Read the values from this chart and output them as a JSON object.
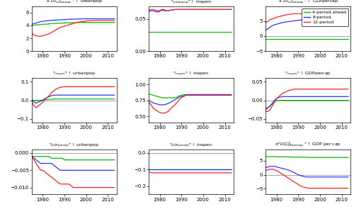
{
  "years": [
    1975,
    1976,
    1977,
    1978,
    1979,
    1980,
    1981,
    1982,
    1983,
    1984,
    1985,
    1986,
    1987,
    1988,
    1989,
    1990,
    1991,
    1992,
    1993,
    1994,
    1995,
    1996,
    1997,
    1998,
    1999,
    2000,
    2001,
    2002,
    2003,
    2004,
    2005,
    2006,
    2007,
    2008,
    2009,
    2010,
    2011,
    2012,
    2013
  ],
  "colors": {
    "green": "#00bb00",
    "blue": "#3333ff",
    "red": "#ff2222"
  },
  "legend_labels": [
    "4-period ahead",
    "8-period",
    "12-period"
  ],
  "xlim": [
    1975,
    2014
  ],
  "xticks": [
    1980,
    1990,
    2000,
    2010
  ],
  "panels": {
    "r0c0": {
      "title": "x 10$^{-3}_{urbanpop}$ \" !  urbanpop",
      "ylim": [
        0,
        7
      ],
      "yticks": [
        0,
        2,
        4,
        6
      ],
      "green": [
        4.0,
        4.05,
        4.1,
        4.1,
        4.15,
        4.18,
        4.2,
        4.22,
        4.25,
        4.28,
        4.3,
        4.32,
        4.35,
        4.37,
        4.38,
        4.39,
        4.4,
        4.42,
        4.43,
        4.44,
        4.45,
        4.46,
        4.47,
        4.47,
        4.47,
        4.47,
        4.47,
        4.47,
        4.47,
        4.47,
        4.47,
        4.47,
        4.47,
        4.47,
        4.47,
        4.47,
        4.47,
        4.47,
        4.47
      ],
      "blue": [
        4.2,
        4.3,
        4.4,
        4.5,
        4.6,
        4.65,
        4.7,
        4.73,
        4.76,
        4.79,
        4.82,
        4.84,
        4.86,
        4.88,
        4.9,
        4.92,
        4.94,
        4.96,
        4.97,
        4.98,
        5.0,
        5.01,
        5.02,
        5.03,
        5.04,
        5.04,
        5.04,
        5.04,
        5.04,
        5.04,
        5.04,
        5.04,
        5.04,
        5.04,
        5.04,
        5.04,
        5.04,
        5.04,
        5.04
      ],
      "red": [
        2.8,
        2.5,
        2.4,
        2.3,
        2.3,
        2.4,
        2.5,
        2.6,
        2.7,
        2.9,
        3.1,
        3.3,
        3.5,
        3.7,
        3.8,
        3.9,
        4.0,
        4.1,
        4.2,
        4.3,
        4.4,
        4.5,
        4.55,
        4.6,
        4.65,
        4.7,
        4.73,
        4.75,
        4.77,
        4.78,
        4.79,
        4.8,
        4.8,
        4.8,
        4.8,
        4.8,
        4.8,
        4.8,
        4.8
      ]
    },
    "r0c1": {
      "title": "\"$_{urbanpop}$\" !  inspen",
      "ylim": [
        0,
        0.07
      ],
      "yticks": [
        0,
        0.05
      ],
      "green": [
        0.03,
        0.03,
        0.03,
        0.03,
        0.03,
        0.03,
        0.03,
        0.03,
        0.03,
        0.03,
        0.03,
        0.03,
        0.03,
        0.03,
        0.03,
        0.03,
        0.03,
        0.03,
        0.03,
        0.03,
        0.03,
        0.03,
        0.03,
        0.03,
        0.03,
        0.03,
        0.03,
        0.03,
        0.03,
        0.03,
        0.03,
        0.03,
        0.03,
        0.03,
        0.03,
        0.03,
        0.03,
        0.03,
        0.03
      ],
      "blue": [
        0.062,
        0.063,
        0.063,
        0.062,
        0.061,
        0.062,
        0.064,
        0.063,
        0.063,
        0.063,
        0.064,
        0.064,
        0.065,
        0.065,
        0.065,
        0.065,
        0.065,
        0.065,
        0.065,
        0.065,
        0.065,
        0.065,
        0.065,
        0.065,
        0.065,
        0.065,
        0.065,
        0.065,
        0.065,
        0.065,
        0.065,
        0.065,
        0.065,
        0.065,
        0.065,
        0.065,
        0.065,
        0.065,
        0.065
      ],
      "red": [
        0.064,
        0.065,
        0.065,
        0.064,
        0.063,
        0.063,
        0.065,
        0.065,
        0.063,
        0.063,
        0.064,
        0.064,
        0.065,
        0.065,
        0.065,
        0.065,
        0.065,
        0.065,
        0.065,
        0.065,
        0.065,
        0.065,
        0.065,
        0.065,
        0.065,
        0.065,
        0.065,
        0.065,
        0.065,
        0.065,
        0.065,
        0.065,
        0.065,
        0.065,
        0.065,
        0.065,
        0.065,
        0.065,
        0.065
      ]
    },
    "r0c2": {
      "title": "x 10$^{-3}_{urbanpop}$ \" !  GDPpercap",
      "ylim": [
        -5,
        10
      ],
      "yticks": [
        -5,
        0,
        5
      ],
      "green": [
        -1.0,
        -1.0,
        -1.0,
        -1.0,
        -1.0,
        -1.0,
        -1.0,
        -1.0,
        -1.0,
        -1.0,
        -1.0,
        -1.0,
        -1.0,
        -1.0,
        -1.0,
        -1.0,
        -1.0,
        -1.0,
        -1.0,
        -1.0,
        -1.0,
        -1.0,
        -1.0,
        -1.0,
        -1.0,
        -1.0,
        -1.0,
        -1.0,
        -1.0,
        -1.0,
        -1.0,
        -1.0,
        -1.0,
        -1.0,
        -1.0,
        -1.0,
        -1.0,
        -1.0,
        -1.0
      ],
      "blue": [
        2.0,
        2.5,
        3.0,
        3.5,
        3.8,
        4.0,
        4.2,
        4.4,
        4.6,
        4.7,
        4.8,
        4.9,
        5.0,
        5.1,
        5.2,
        5.3,
        5.4,
        5.5,
        5.6,
        5.6,
        5.6,
        5.6,
        5.6,
        5.6,
        5.6,
        5.6,
        5.6,
        5.6,
        5.6,
        5.6,
        5.6,
        5.6,
        5.6,
        5.6,
        5.6,
        5.6,
        5.6,
        5.6,
        5.6
      ],
      "red": [
        4.5,
        5.0,
        5.5,
        5.8,
        6.0,
        6.3,
        6.5,
        6.7,
        6.9,
        7.1,
        7.2,
        7.3,
        7.4,
        7.5,
        7.5,
        7.5,
        7.5,
        7.5,
        7.5,
        7.5,
        7.5,
        7.5,
        7.5,
        7.5,
        7.5,
        7.5,
        7.5,
        7.5,
        7.5,
        7.5,
        7.5,
        7.5,
        7.5,
        7.5,
        7.5,
        7.5,
        7.5,
        7.5,
        7.5
      ]
    },
    "r1c0": {
      "title": "\"$_{inspen}$\" !  urbanpop",
      "ylim": [
        -0.12,
        0.12
      ],
      "yticks": [
        -0.1,
        0,
        0.1
      ],
      "green": [
        0.0,
        0.0,
        0.0,
        0.0,
        0.0,
        0.002,
        0.003,
        0.004,
        0.005,
        0.006,
        0.007,
        0.007,
        0.007,
        0.007,
        0.007,
        0.007,
        0.007,
        0.007,
        0.007,
        0.007,
        0.007,
        0.007,
        0.007,
        0.007,
        0.007,
        0.007,
        0.007,
        0.007,
        0.007,
        0.007,
        0.007,
        0.007,
        0.007,
        0.007,
        0.007,
        0.007,
        0.007,
        0.007,
        0.007
      ],
      "blue": [
        0.0,
        -0.01,
        -0.015,
        -0.01,
        -0.005,
        0.0,
        0.01,
        0.015,
        0.02,
        0.025,
        0.027,
        0.028,
        0.028,
        0.028,
        0.028,
        0.028,
        0.028,
        0.028,
        0.028,
        0.028,
        0.028,
        0.028,
        0.028,
        0.028,
        0.028,
        0.028,
        0.028,
        0.028,
        0.028,
        0.028,
        0.028,
        0.028,
        0.028,
        0.028,
        0.028,
        0.028,
        0.028,
        0.028,
        0.028
      ],
      "red": [
        -0.01,
        -0.03,
        -0.04,
        -0.03,
        -0.02,
        -0.01,
        0.005,
        0.015,
        0.025,
        0.04,
        0.05,
        0.06,
        0.065,
        0.07,
        0.072,
        0.073,
        0.073,
        0.073,
        0.073,
        0.073,
        0.073,
        0.073,
        0.073,
        0.073,
        0.073,
        0.073,
        0.073,
        0.073,
        0.073,
        0.073,
        0.073,
        0.073,
        0.073,
        0.073,
        0.073,
        0.073,
        0.073,
        0.073,
        0.073
      ]
    },
    "r1c1": {
      "title": "\"$_{inspen}$\" !  inspen",
      "ylim": [
        0.4,
        1.1
      ],
      "yticks": [
        0.5,
        0.75,
        1.0
      ],
      "green": [
        0.85,
        0.84,
        0.83,
        0.82,
        0.81,
        0.8,
        0.79,
        0.79,
        0.79,
        0.79,
        0.79,
        0.79,
        0.79,
        0.8,
        0.82,
        0.83,
        0.84,
        0.84,
        0.84,
        0.84,
        0.84,
        0.84,
        0.84,
        0.84,
        0.84,
        0.84,
        0.84,
        0.84,
        0.84,
        0.84,
        0.84,
        0.84,
        0.84,
        0.84,
        0.84,
        0.84,
        0.84,
        0.84,
        0.84
      ],
      "blue": [
        0.75,
        0.73,
        0.71,
        0.7,
        0.69,
        0.68,
        0.68,
        0.68,
        0.69,
        0.7,
        0.72,
        0.74,
        0.76,
        0.78,
        0.8,
        0.81,
        0.82,
        0.83,
        0.83,
        0.83,
        0.83,
        0.83,
        0.83,
        0.83,
        0.83,
        0.83,
        0.83,
        0.83,
        0.83,
        0.83,
        0.83,
        0.83,
        0.83,
        0.83,
        0.83,
        0.83,
        0.83,
        0.83,
        0.83
      ],
      "red": [
        0.72,
        0.68,
        0.63,
        0.6,
        0.58,
        0.56,
        0.55,
        0.55,
        0.56,
        0.58,
        0.62,
        0.65,
        0.68,
        0.72,
        0.76,
        0.79,
        0.81,
        0.83,
        0.84,
        0.84,
        0.84,
        0.84,
        0.84,
        0.84,
        0.84,
        0.84,
        0.84,
        0.84,
        0.84,
        0.84,
        0.84,
        0.84,
        0.84,
        0.84,
        0.84,
        0.84,
        0.84,
        0.84,
        0.84
      ]
    },
    "r1c2": {
      "title": "\"$_{inspen}$\" !  GDPpercap",
      "ylim": [
        -0.06,
        0.06
      ],
      "yticks": [
        -0.05,
        0,
        0.05
      ],
      "green": [
        -0.02,
        -0.02,
        -0.015,
        -0.01,
        -0.005,
        0.0,
        0.0,
        0.0,
        0.0,
        0.0,
        0.0,
        0.0,
        0.0,
        0.0,
        0.0,
        0.0,
        0.0,
        0.0,
        0.0,
        0.0,
        0.0,
        0.0,
        0.0,
        0.0,
        0.0,
        0.0,
        0.0,
        0.0,
        0.0,
        0.0,
        0.0,
        0.0,
        0.0,
        0.0,
        0.0,
        0.0,
        0.0,
        0.0,
        0.0
      ],
      "blue": [
        -0.025,
        -0.02,
        -0.015,
        -0.008,
        0.0,
        0.005,
        0.008,
        0.009,
        0.01,
        0.01,
        0.01,
        0.01,
        0.01,
        0.01,
        0.01,
        0.01,
        0.01,
        0.01,
        0.01,
        0.01,
        0.01,
        0.01,
        0.01,
        0.01,
        0.01,
        0.01,
        0.01,
        0.01,
        0.01,
        0.01,
        0.01,
        0.01,
        0.01,
        0.01,
        0.01,
        0.01,
        0.01,
        0.01,
        0.01
      ],
      "red": [
        -0.03,
        -0.03,
        -0.025,
        -0.015,
        -0.005,
        0.005,
        0.01,
        0.015,
        0.02,
        0.022,
        0.025,
        0.027,
        0.028,
        0.03,
        0.03,
        0.03,
        0.03,
        0.03,
        0.03,
        0.03,
        0.03,
        0.03,
        0.03,
        0.03,
        0.03,
        0.03,
        0.03,
        0.03,
        0.03,
        0.03,
        0.03,
        0.03,
        0.03,
        0.03,
        0.03,
        0.03,
        0.03,
        0.03,
        0.03
      ]
    },
    "r2c0": {
      "title": "\"$_{GDPpercap}$\" !  urbanpop",
      "ylim": [
        -0.012,
        0.001
      ],
      "yticks": [
        -0.01,
        -0.005,
        0
      ],
      "green": [
        -0.001,
        -0.001,
        -0.001,
        -0.001,
        -0.001,
        -0.001,
        -0.001,
        -0.001,
        -0.001,
        -0.0015,
        -0.0015,
        -0.0015,
        -0.0015,
        -0.0015,
        -0.0015,
        -0.002,
        -0.002,
        -0.002,
        -0.002,
        -0.002,
        -0.002,
        -0.002,
        -0.002,
        -0.002,
        -0.002,
        -0.002,
        -0.002,
        -0.002,
        -0.002,
        -0.002,
        -0.002,
        -0.002,
        -0.002,
        -0.002,
        -0.002,
        -0.002,
        -0.002,
        -0.002,
        -0.002
      ],
      "blue": [
        -0.001,
        -0.0015,
        -0.002,
        -0.0025,
        -0.003,
        -0.003,
        -0.003,
        -0.003,
        -0.003,
        -0.003,
        -0.0035,
        -0.004,
        -0.0045,
        -0.005,
        -0.005,
        -0.005,
        -0.005,
        -0.005,
        -0.005,
        -0.005,
        -0.005,
        -0.005,
        -0.005,
        -0.005,
        -0.005,
        -0.005,
        -0.005,
        -0.005,
        -0.005,
        -0.005,
        -0.005,
        -0.005,
        -0.005,
        -0.005,
        -0.005,
        -0.005,
        -0.005,
        -0.005,
        -0.005
      ],
      "red": [
        -0.001,
        -0.002,
        -0.003,
        -0.004,
        -0.005,
        -0.005,
        -0.0055,
        -0.006,
        -0.0065,
        -0.007,
        -0.0075,
        -0.008,
        -0.0085,
        -0.009,
        -0.009,
        -0.009,
        -0.009,
        -0.009,
        -0.0095,
        -0.01,
        -0.01,
        -0.01,
        -0.01,
        -0.01,
        -0.01,
        -0.01,
        -0.01,
        -0.01,
        -0.01,
        -0.01,
        -0.01,
        -0.01,
        -0.01,
        -0.01,
        -0.01,
        -0.01,
        -0.01,
        -0.01,
        -0.01
      ]
    },
    "r2c1": {
      "title": "\"$_{GDPpercap}$\" !  inspen",
      "ylim": [
        -0.25,
        0.02
      ],
      "yticks": [
        -0.2,
        -0.1,
        0
      ],
      "green": [
        -0.1,
        -0.1,
        -0.1,
        -0.1,
        -0.1,
        -0.1,
        -0.1,
        -0.1,
        -0.1,
        -0.1,
        -0.1,
        -0.1,
        -0.1,
        -0.1,
        -0.1,
        -0.1,
        -0.1,
        -0.1,
        -0.1,
        -0.1,
        -0.1,
        -0.1,
        -0.1,
        -0.1,
        -0.1,
        -0.1,
        -0.1,
        -0.1,
        -0.1,
        -0.1,
        -0.1,
        -0.1,
        -0.1,
        -0.1,
        -0.1,
        -0.1,
        -0.1,
        -0.1,
        -0.1
      ],
      "blue": [
        -0.1,
        -0.1,
        -0.1,
        -0.1,
        -0.1,
        -0.1,
        -0.1,
        -0.1,
        -0.1,
        -0.1,
        -0.1,
        -0.1,
        -0.1,
        -0.1,
        -0.1,
        -0.1,
        -0.1,
        -0.1,
        -0.1,
        -0.1,
        -0.1,
        -0.1,
        -0.1,
        -0.1,
        -0.1,
        -0.1,
        -0.1,
        -0.1,
        -0.1,
        -0.1,
        -0.1,
        -0.1,
        -0.1,
        -0.1,
        -0.1,
        -0.1,
        -0.1,
        -0.1,
        -0.1
      ],
      "red": [
        -0.115,
        -0.118,
        -0.12,
        -0.12,
        -0.12,
        -0.12,
        -0.12,
        -0.12,
        -0.12,
        -0.12,
        -0.12,
        -0.12,
        -0.12,
        -0.12,
        -0.12,
        -0.12,
        -0.12,
        -0.12,
        -0.12,
        -0.12,
        -0.12,
        -0.12,
        -0.12,
        -0.12,
        -0.12,
        -0.12,
        -0.12,
        -0.12,
        -0.12,
        -0.12,
        -0.12,
        -0.12,
        -0.12,
        -0.12,
        -0.12,
        -0.12,
        -0.12,
        -0.12,
        -0.12
      ]
    },
    "r2c2": {
      "title": "x*10$^{-3}_{GDPpercap}$ \" !  GDP per cap",
      "ylim": [
        -7,
        9
      ],
      "yticks": [
        -5,
        0,
        5
      ],
      "green": [
        6.5,
        6.5,
        6.5,
        6.5,
        6.5,
        6.5,
        6.4,
        6.4,
        6.4,
        6.4,
        6.4,
        6.4,
        6.3,
        6.3,
        6.3,
        6.3,
        6.3,
        6.3,
        6.3,
        6.2,
        6.2,
        6.2,
        6.2,
        6.2,
        6.2,
        6.2,
        6.2,
        6.2,
        6.2,
        6.2,
        6.2,
        6.2,
        6.2,
        6.2,
        6.2,
        6.2,
        6.2,
        6.2,
        6.2
      ],
      "blue": [
        2.5,
        2.8,
        3.0,
        3.0,
        3.0,
        2.8,
        2.6,
        2.4,
        2.2,
        2.0,
        1.8,
        1.5,
        1.2,
        0.8,
        0.4,
        0.0,
        -0.3,
        -0.5,
        -0.7,
        -0.8,
        -0.8,
        -0.8,
        -0.8,
        -0.8,
        -0.8,
        -0.8,
        -0.8,
        -0.8,
        -0.8,
        -0.8,
        -0.8,
        -0.8,
        -0.8,
        -0.8,
        -0.8,
        -0.8,
        -0.8,
        -0.8,
        -0.8
      ],
      "red": [
        1.5,
        1.8,
        2.0,
        2.0,
        1.8,
        1.5,
        1.0,
        0.5,
        0.0,
        -0.5,
        -1.0,
        -1.5,
        -2.0,
        -2.5,
        -3.0,
        -3.5,
        -4.0,
        -4.3,
        -4.5,
        -4.7,
        -4.8,
        -4.8,
        -4.8,
        -4.8,
        -4.8,
        -4.8,
        -4.8,
        -4.8,
        -4.8,
        -4.8,
        -4.8,
        -4.8,
        -4.8,
        -4.8,
        -4.8,
        -4.8,
        -4.8,
        -4.8,
        -4.8
      ]
    }
  }
}
